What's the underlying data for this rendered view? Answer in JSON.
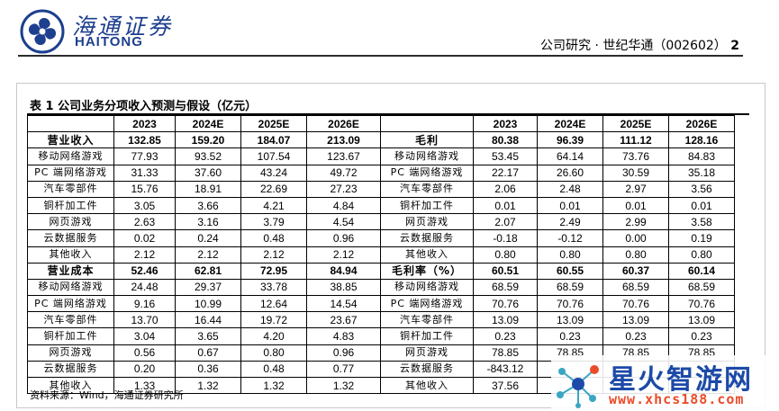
{
  "header": {
    "logo_cn": "海通证券",
    "logo_en": "HAITONG",
    "breadcrumb": "公司研究 · 世纪华通（002602）",
    "page_number": "2"
  },
  "table_title": "表 1 公司业务分项收入预测与假设（亿元）",
  "columns": [
    "2023",
    "2024E",
    "2025E",
    "2026E"
  ],
  "left_rows": [
    {
      "label": "营业收入",
      "bold": true,
      "values": [
        "132.85",
        "159.20",
        "184.07",
        "213.09"
      ]
    },
    {
      "label": "移动网络游戏",
      "values": [
        "77.93",
        "93.52",
        "107.54",
        "123.67"
      ]
    },
    {
      "label": "PC 端网络游戏",
      "values": [
        "31.33",
        "37.60",
        "43.24",
        "49.72"
      ]
    },
    {
      "label": "汽车零部件",
      "values": [
        "15.76",
        "18.91",
        "22.69",
        "27.23"
      ]
    },
    {
      "label": "铜杆加工件",
      "values": [
        "3.05",
        "3.66",
        "4.21",
        "4.84"
      ]
    },
    {
      "label": "网页游戏",
      "values": [
        "2.63",
        "3.16",
        "3.79",
        "4.54"
      ]
    },
    {
      "label": "云数据服务",
      "values": [
        "0.02",
        "0.24",
        "0.48",
        "0.96"
      ]
    },
    {
      "label": "其他收入",
      "values": [
        "2.12",
        "2.12",
        "2.12",
        "2.12"
      ]
    },
    {
      "label": "营业成本",
      "bold": true,
      "values": [
        "52.46",
        "62.81",
        "72.95",
        "84.94"
      ]
    },
    {
      "label": "移动网络游戏",
      "values": [
        "24.48",
        "29.37",
        "33.78",
        "38.85"
      ]
    },
    {
      "label": "PC 端网络游戏",
      "values": [
        "9.16",
        "10.99",
        "12.64",
        "14.54"
      ]
    },
    {
      "label": "汽车零部件",
      "values": [
        "13.70",
        "16.44",
        "19.72",
        "23.67"
      ]
    },
    {
      "label": "铜杆加工件",
      "values": [
        "3.04",
        "3.65",
        "4.20",
        "4.83"
      ]
    },
    {
      "label": "网页游戏",
      "values": [
        "0.56",
        "0.67",
        "0.80",
        "0.96"
      ]
    },
    {
      "label": "云数据服务",
      "values": [
        "0.20",
        "0.36",
        "0.48",
        "0.77"
      ]
    },
    {
      "label": "其他收入",
      "values": [
        "1.33",
        "1.32",
        "1.32",
        "1.32"
      ]
    }
  ],
  "right_rows": [
    {
      "label": "毛利",
      "bold": true,
      "values": [
        "80.38",
        "96.39",
        "111.12",
        "128.16"
      ]
    },
    {
      "label": "移动网络游戏",
      "values": [
        "53.45",
        "64.14",
        "73.76",
        "84.83"
      ]
    },
    {
      "label": "PC 端网络游戏",
      "values": [
        "22.17",
        "26.60",
        "30.59",
        "35.18"
      ]
    },
    {
      "label": "汽车零部件",
      "values": [
        "2.06",
        "2.48",
        "2.97",
        "3.56"
      ]
    },
    {
      "label": "铜杆加工件",
      "values": [
        "0.01",
        "0.01",
        "0.01",
        "0.01"
      ]
    },
    {
      "label": "网页游戏",
      "values": [
        "2.07",
        "2.49",
        "2.99",
        "3.58"
      ]
    },
    {
      "label": "云数据服务",
      "values": [
        "-0.18",
        "-0.12",
        "0.00",
        "0.19"
      ]
    },
    {
      "label": "其他收入",
      "values": [
        "0.80",
        "0.80",
        "0.80",
        "0.80"
      ]
    },
    {
      "label": "毛利率（%）",
      "bold": true,
      "values": [
        "60.51",
        "60.55",
        "60.37",
        "60.14"
      ]
    },
    {
      "label": "移动网络游戏",
      "values": [
        "68.59",
        "68.59",
        "68.59",
        "68.59"
      ]
    },
    {
      "label": "PC 端网络游戏",
      "values": [
        "70.76",
        "70.76",
        "70.76",
        "70.76"
      ]
    },
    {
      "label": "汽车零部件",
      "values": [
        "13.09",
        "13.09",
        "13.09",
        "13.09"
      ]
    },
    {
      "label": "铜杆加工件",
      "values": [
        "0.23",
        "0.23",
        "0.23",
        "0.23"
      ]
    },
    {
      "label": "网页游戏",
      "values": [
        "78.85",
        "78.85",
        "78.85",
        "78.85"
      ]
    },
    {
      "label": "云数据服务",
      "values": [
        "-843.12",
        "",
        "",
        ""
      ]
    },
    {
      "label": "其他收入",
      "values": [
        "37.56",
        "",
        "",
        ""
      ]
    }
  ],
  "source": "资料来源：Wind，海通证券研究所",
  "watermark": {
    "title": "星火智游网",
    "url": "www.xhcs188.com"
  }
}
